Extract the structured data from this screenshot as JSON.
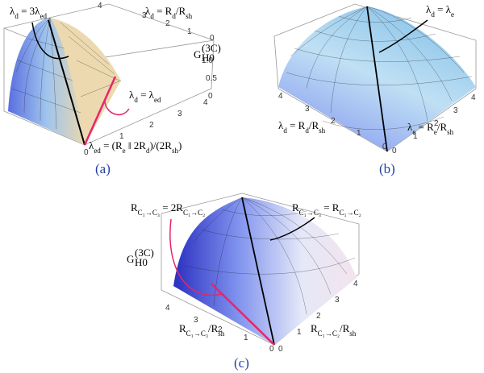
{
  "panels": [
    {
      "caption": "(a)",
      "labels": [
        [
          "λ",
          "d",
          " = 3λ",
          "ed"
        ],
        [
          "λ",
          "d",
          " = R",
          "d",
          "/R",
          "sh"
        ],
        [
          "λ",
          "d",
          " = λ",
          "ed"
        ],
        [
          "λ",
          "ed",
          " = (R",
          "e",
          " ‖ 2R",
          "d",
          ")/(2R",
          "sh",
          ")"
        ]
      ],
      "z_label": {
        "base": "G",
        "sub": "H0",
        "sup": "(3C)"
      },
      "ticks": [
        "4",
        "3",
        "2",
        "1",
        "0",
        "1.0",
        "0.5",
        "0",
        "0",
        "1",
        "2",
        "3",
        "4"
      ]
    },
    {
      "caption": "(b)",
      "labels": [
        [
          "λ",
          "d",
          " = λ",
          "e"
        ],
        [
          "λ",
          "d",
          " = R",
          "d",
          "/R",
          "sh"
        ],
        [
          "λ",
          "e",
          " = R",
          "e",
          "/R",
          "sh"
        ]
      ],
      "ticks": [
        "4",
        "3",
        "2",
        "1",
        "0",
        "0",
        "1",
        "2",
        "3",
        "4"
      ]
    },
    {
      "caption": "(c)",
      "labels": [
        [
          "R",
          "C₁→C₃",
          " = 2R",
          "C₁→C₂"
        ],
        [
          "R",
          "C₁→C₃",
          " = R",
          "C₁→C₂"
        ],
        [
          "R",
          "C₁→C₃",
          "/R",
          "sh"
        ],
        [
          "R",
          "C₁→C₂",
          "/R",
          "sh"
        ]
      ],
      "z_label": {
        "base": "G",
        "sub": "H0",
        "sup": "(3C)"
      },
      "ticks": [
        "4",
        "3",
        "2",
        "1",
        "0",
        "0",
        "1",
        "2",
        "3",
        "4"
      ]
    }
  ]
}
